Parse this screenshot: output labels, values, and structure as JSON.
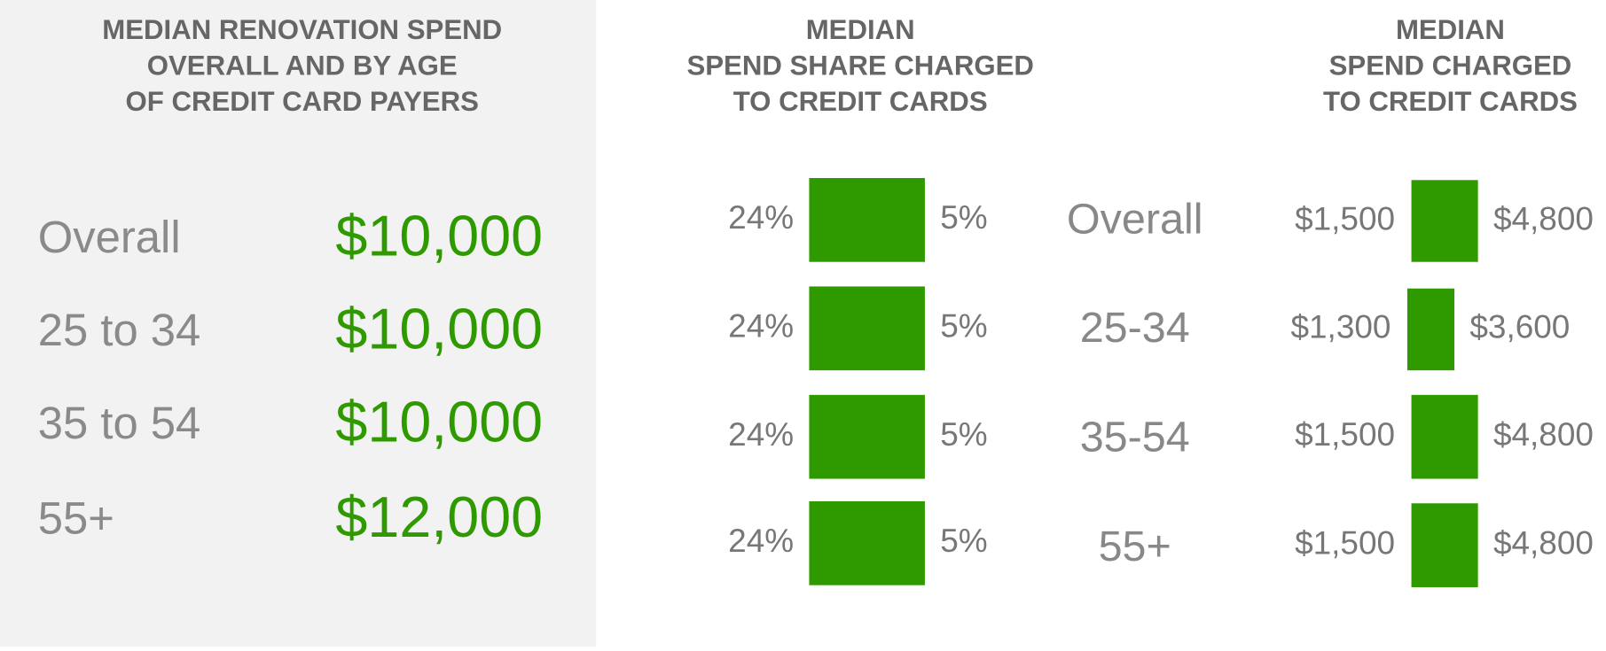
{
  "left_panel": {
    "title": [
      "MEDIAN RENOVATION SPEND",
      "OVERALL AND BY AGE",
      "OF CREDIT CARD PAYERS"
    ],
    "rows": [
      {
        "label": "Overall",
        "value": "$10,000"
      },
      {
        "label": "25 to 34",
        "value": "$10,000"
      },
      {
        "label": "35 to 54",
        "value": "$10,000"
      },
      {
        "label": "55+",
        "value": "$12,000"
      }
    ]
  },
  "middle_panel": {
    "title": [
      "MEDIAN",
      "SPEND SHARE CHARGED",
      "TO CREDIT CARDS"
    ],
    "rows": [
      {
        "left": "24%",
        "right": "5%"
      },
      {
        "left": "24%",
        "right": "5%"
      },
      {
        "left": "24%",
        "right": "5%"
      },
      {
        "left": "24%",
        "right": "5%"
      }
    ]
  },
  "row_labels": [
    "Overall",
    "25-34",
    "35-54",
    "55+"
  ],
  "right_panel": {
    "title": [
      "MEDIAN",
      "SPEND CHARGED",
      "TO CREDIT CARDS"
    ],
    "rows": [
      {
        "left": "$1,500",
        "right": "$4,800"
      },
      {
        "left": "$1,300",
        "right": "$3,600"
      },
      {
        "left": "$1,500",
        "right": "$4,800"
      },
      {
        "left": "$1,500",
        "right": "$4,800"
      }
    ]
  }
}
